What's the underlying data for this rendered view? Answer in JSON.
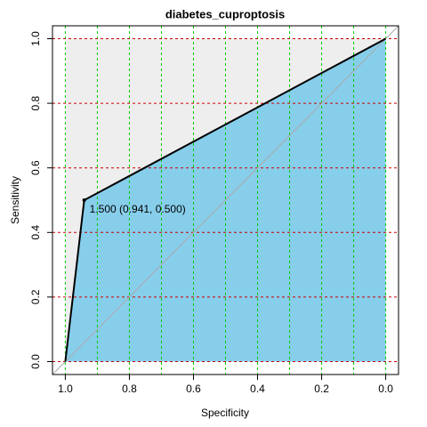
{
  "chart_data": {
    "type": "roc",
    "title": "diabetes_cuproptosis",
    "xlabel": "Specificity",
    "ylabel": "Sensitivity",
    "x": [
      1,
      0.941,
      0
    ],
    "values": [
      0,
      0.5,
      1
    ],
    "color": "#87ceeb",
    "max_auc_color": "#eeeeee",
    "xlim": [
      1.04,
      -0.04
    ],
    "ylim": [
      -0.04,
      1.04
    ],
    "xticks": [
      {
        "value": 1,
        "label": "1.0"
      },
      0.8,
      0.6,
      0.4,
      0.2,
      {
        "value": 0,
        "label": "0.0"
      }
    ],
    "yticks": [
      {
        "value": 0,
        "label": "0.0"
      },
      0.2,
      0.4,
      0.6,
      0.8,
      {
        "value": 1,
        "label": "1.0"
      }
    ],
    "xgrid": [
      1,
      0.9,
      0.8,
      0.7,
      0.6,
      0.5,
      0.4,
      0.3,
      0.2,
      0.1,
      0
    ],
    "xgrid_color": "#00cc00",
    "ygrid": [
      0,
      0.2,
      0.4,
      0.6,
      0.8,
      1
    ],
    "ygrid_color": "#cc0000",
    "threshold": {
      "label": "1.500 (0.941, 0.500)",
      "x": 0.941,
      "y": 0.5
    }
  }
}
